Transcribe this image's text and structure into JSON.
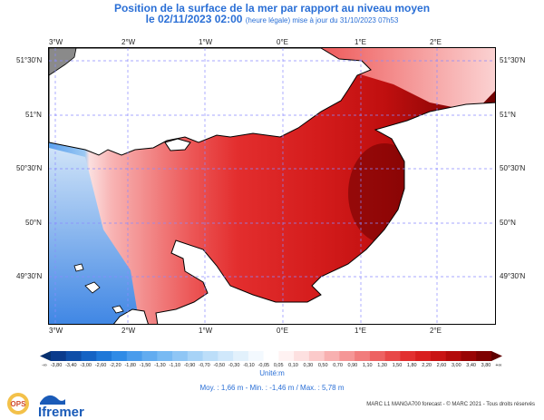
{
  "title": {
    "line1": "Position de la surface de la mer par rapport au niveau moyen",
    "line2": "le 02/11/2023 02:00",
    "line2_sub": "(heure légale) mise à jour du 31/10/2023 07h53"
  },
  "map": {
    "lon_labels": [
      "3°W",
      "2°W",
      "1°W",
      "0°E",
      "1°E",
      "2°E"
    ],
    "lat_labels": [
      "51°30'N",
      "51°N",
      "50°30'N",
      "50°N",
      "49°30'N"
    ],
    "colors": {
      "sea_base": "#9bc9f4",
      "land": "#ffffff",
      "coast": "#000000",
      "grid": "#7a7aff",
      "west_land": "#888888"
    }
  },
  "colorbar": {
    "ticks": [
      "-3,80",
      "-3,40",
      "-3,00",
      "-2,60",
      "-2,20",
      "-1,80",
      "-1,50",
      "-1,30",
      "-1,10",
      "-0,90",
      "-0,70",
      "-0,50",
      "-0,30",
      "-0,10",
      "-0,05",
      "0,05",
      "0,10",
      "0,30",
      "0,50",
      "0,70",
      "0,90",
      "1,10",
      "1,30",
      "1,50",
      "1,80",
      "2,20",
      "2,60",
      "3,00",
      "3,40",
      "3,80"
    ],
    "low_end": "-∞",
    "high_end": "+∞",
    "unit": "Unité:m"
  },
  "stats": "Moy. : 1,66 m    -    Min. : -1,46 m / Max. : 5,78 m",
  "credit": "MARC L1 MANGA700 forecast - © MARC 2021 - Tous droits réservés",
  "date2": "",
  "logos": {
    "ops": "OPS",
    "ifremer": "Ifremer"
  }
}
